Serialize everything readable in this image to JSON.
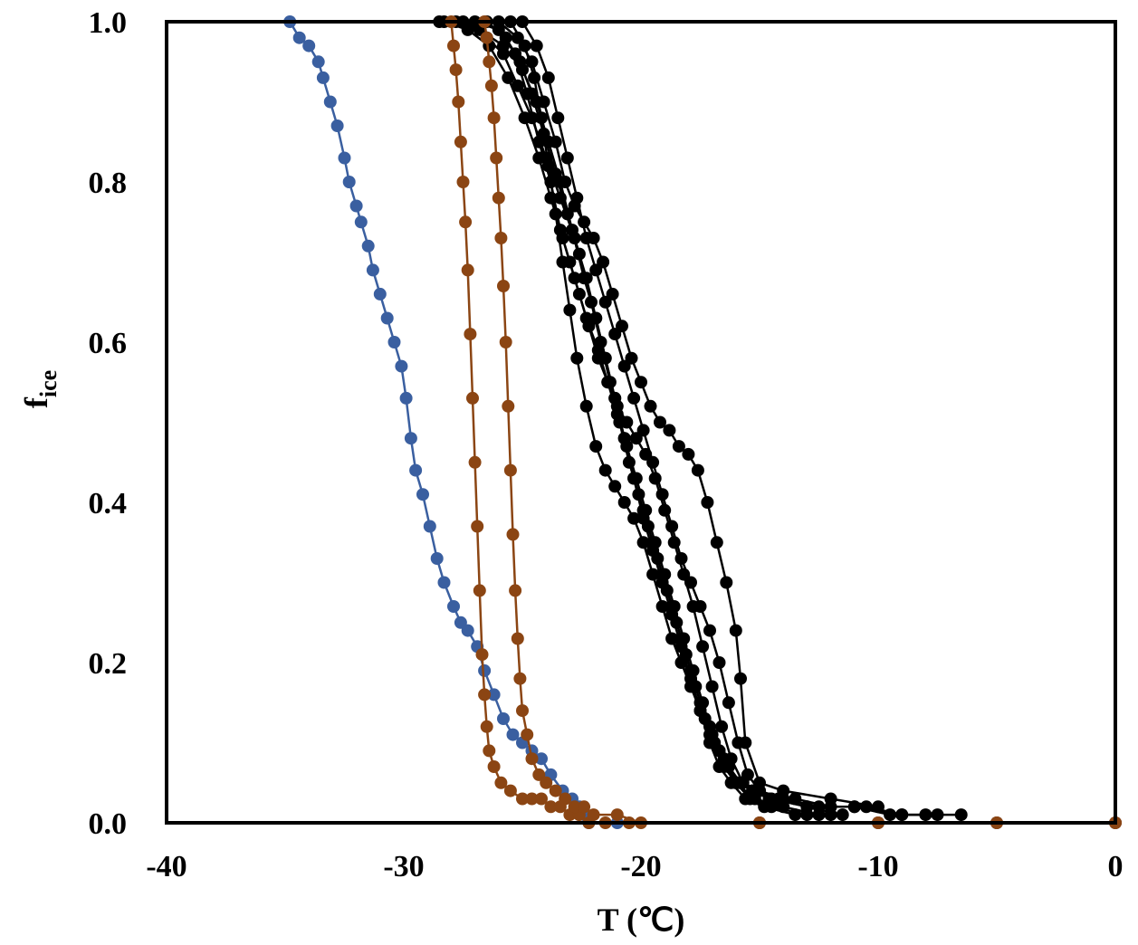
{
  "chart_data": {
    "type": "scatter",
    "title": "",
    "xlabel": "T (℃)",
    "ylabel_main": "f",
    "ylabel_sub": "ice",
    "xlim": [
      -40,
      0
    ],
    "ylim": [
      0,
      1
    ],
    "x_ticks": [
      -40,
      -30,
      -20,
      -10,
      0
    ],
    "x_tick_labels": [
      "-40",
      "-30",
      "-20",
      "-10",
      "0"
    ],
    "y_ticks": [
      0,
      0.2,
      0.4,
      0.6,
      0.8,
      1.0
    ],
    "y_tick_labels": [
      "0.0",
      "0.2",
      "0.4",
      "0.6",
      "0.8",
      "1.0"
    ],
    "grid": false,
    "legend": "none",
    "series": [
      {
        "color": "#3a5fa0",
        "x": [
          -34.8,
          -34.4,
          -34.0,
          -33.6,
          -33.4,
          -33.1,
          -32.8,
          -32.5,
          -32.3,
          -32.0,
          -31.8,
          -31.5,
          -31.3,
          -31.0,
          -30.7,
          -30.4,
          -30.1,
          -29.9,
          -29.7,
          -29.5,
          -29.2,
          -28.9,
          -28.6,
          -28.3,
          -27.9,
          -27.6,
          -27.3,
          -26.9,
          -26.6,
          -26.2,
          -25.8,
          -25.4,
          -25.0,
          -24.6,
          -24.2,
          -23.8,
          -23.3,
          -22.9,
          -22.6,
          -22.4,
          -22.2,
          -21.0,
          -15.0,
          -10.0,
          -5.0,
          0.0
        ],
        "y": [
          1.0,
          0.98,
          0.97,
          0.95,
          0.93,
          0.9,
          0.87,
          0.83,
          0.8,
          0.77,
          0.75,
          0.72,
          0.69,
          0.66,
          0.63,
          0.6,
          0.57,
          0.53,
          0.48,
          0.44,
          0.41,
          0.37,
          0.33,
          0.3,
          0.27,
          0.25,
          0.24,
          0.22,
          0.19,
          0.16,
          0.13,
          0.11,
          0.1,
          0.09,
          0.08,
          0.06,
          0.04,
          0.03,
          0.02,
          0.01,
          0.0,
          0.0,
          0.0,
          0.0,
          0.0,
          0.0
        ]
      },
      {
        "color": "#8b4513",
        "x": [
          -28.0,
          -27.9,
          -27.8,
          -27.7,
          -27.6,
          -27.5,
          -27.4,
          -27.3,
          -27.2,
          -27.1,
          -27.0,
          -26.9,
          -26.8,
          -26.7,
          -26.6,
          -26.5,
          -26.4,
          -26.2,
          -25.9,
          -25.5,
          -25.0,
          -24.6,
          -24.2,
          -23.8,
          -23.4,
          -23.0,
          -22.6,
          -22.2,
          -21.5,
          -20.5,
          -15.0,
          -10.0,
          -5.0,
          0.0
        ],
        "y": [
          1.0,
          0.97,
          0.94,
          0.9,
          0.85,
          0.8,
          0.75,
          0.69,
          0.61,
          0.53,
          0.45,
          0.37,
          0.29,
          0.21,
          0.16,
          0.12,
          0.09,
          0.07,
          0.05,
          0.04,
          0.03,
          0.03,
          0.03,
          0.02,
          0.02,
          0.01,
          0.01,
          0.0,
          0.0,
          0.0,
          0.0,
          0.0,
          0.0,
          0.0
        ]
      },
      {
        "color": "#8b4513",
        "x": [
          -26.6,
          -26.5,
          -26.4,
          -26.3,
          -26.2,
          -26.1,
          -26.0,
          -25.9,
          -25.8,
          -25.7,
          -25.6,
          -25.5,
          -25.4,
          -25.3,
          -25.2,
          -25.1,
          -25.0,
          -24.8,
          -24.6,
          -24.3,
          -24.0,
          -23.6,
          -23.2,
          -22.8,
          -22.4,
          -22.0,
          -21.0,
          -20.0,
          -15.0,
          -10.0,
          -5.0,
          0.0
        ],
        "y": [
          1.0,
          0.98,
          0.95,
          0.92,
          0.88,
          0.83,
          0.78,
          0.73,
          0.67,
          0.6,
          0.52,
          0.44,
          0.36,
          0.29,
          0.23,
          0.18,
          0.14,
          0.11,
          0.08,
          0.06,
          0.05,
          0.04,
          0.03,
          0.02,
          0.02,
          0.01,
          0.01,
          0.0,
          0.0,
          0.0,
          0.0,
          0.0
        ]
      },
      {
        "color": "#000000",
        "x": [
          -28.5,
          -27.5,
          -26.5,
          -25.8,
          -25.2,
          -24.6,
          -24.0,
          -23.4,
          -22.8,
          -22.3,
          -21.9,
          -21.5,
          -21.1,
          -20.7,
          -20.3,
          -19.9,
          -19.5,
          -19.1,
          -18.7,
          -18.3,
          -17.9,
          -17.5,
          -17.1,
          -16.7,
          -16.3,
          -15.8,
          -15.3,
          -14.6,
          -13.5,
          -12.0,
          -10.5,
          -9.0,
          -7.5,
          -6.5
        ],
        "y": [
          1.0,
          1.0,
          0.98,
          0.96,
          0.92,
          0.88,
          0.83,
          0.78,
          0.73,
          0.68,
          0.63,
          0.58,
          0.53,
          0.48,
          0.43,
          0.39,
          0.35,
          0.31,
          0.27,
          0.23,
          0.19,
          0.15,
          0.12,
          0.09,
          0.07,
          0.05,
          0.04,
          0.03,
          0.03,
          0.02,
          0.02,
          0.01,
          0.01,
          0.01
        ]
      },
      {
        "color": "#000000",
        "x": [
          -27.0,
          -26.0,
          -25.3,
          -24.8,
          -24.3,
          -23.8,
          -23.4,
          -23.0,
          -22.6,
          -22.2,
          -21.8,
          -21.4,
          -21.0,
          -20.6,
          -20.2,
          -19.8,
          -19.4,
          -19.0,
          -18.6,
          -18.2,
          -17.8,
          -17.4,
          -17.0,
          -16.6,
          -16.2,
          -15.7,
          -15.0,
          -14.0,
          -12.5,
          -11.0,
          -9.5,
          -8.0
        ],
        "y": [
          1.0,
          0.99,
          0.96,
          0.91,
          0.85,
          0.8,
          0.74,
          0.7,
          0.66,
          0.62,
          0.58,
          0.55,
          0.52,
          0.5,
          0.48,
          0.46,
          0.43,
          0.39,
          0.35,
          0.31,
          0.27,
          0.22,
          0.17,
          0.12,
          0.08,
          0.05,
          0.04,
          0.03,
          0.02,
          0.02,
          0.01,
          0.01
        ]
      },
      {
        "color": "#000000",
        "x": [
          -26.0,
          -25.2,
          -24.6,
          -24.1,
          -23.6,
          -23.2,
          -22.8,
          -22.4,
          -22.0,
          -21.6,
          -21.2,
          -20.8,
          -20.4,
          -20.0,
          -19.6,
          -19.2,
          -18.8,
          -18.4,
          -18.0,
          -17.6,
          -17.2,
          -16.8,
          -16.4,
          -16.0,
          -15.8,
          -15.6,
          -15.0,
          -14.0,
          -12.0,
          -10.0
        ],
        "y": [
          1.0,
          0.98,
          0.95,
          0.9,
          0.85,
          0.8,
          0.77,
          0.75,
          0.73,
          0.7,
          0.66,
          0.62,
          0.58,
          0.55,
          0.52,
          0.5,
          0.49,
          0.47,
          0.46,
          0.44,
          0.4,
          0.35,
          0.3,
          0.24,
          0.18,
          0.1,
          0.05,
          0.04,
          0.03,
          0.02
        ]
      },
      {
        "color": "#000000",
        "x": [
          -27.8,
          -26.8,
          -25.8,
          -25.0,
          -24.4,
          -23.9,
          -23.4,
          -22.9,
          -22.4,
          -21.9,
          -21.5,
          -21.1,
          -20.7,
          -20.3,
          -19.9,
          -19.5,
          -19.1,
          -18.7,
          -18.3,
          -17.9,
          -17.5,
          -17.1,
          -16.7,
          -16.2,
          -15.6,
          -14.8,
          -13.5,
          -12.0
        ],
        "y": [
          1.0,
          0.99,
          0.97,
          0.94,
          0.9,
          0.85,
          0.8,
          0.74,
          0.68,
          0.63,
          0.58,
          0.53,
          0.48,
          0.43,
          0.38,
          0.34,
          0.3,
          0.26,
          0.22,
          0.18,
          0.14,
          0.1,
          0.07,
          0.05,
          0.03,
          0.02,
          0.01,
          0.01
        ]
      },
      {
        "color": "#000000",
        "x": [
          -25.5,
          -24.9,
          -24.5,
          -24.2,
          -23.9,
          -23.6,
          -23.3,
          -23.0,
          -22.7,
          -22.3,
          -21.9,
          -21.5,
          -21.1,
          -20.7,
          -20.3,
          -19.9,
          -19.5,
          -19.1,
          -18.7,
          -18.3,
          -17.9,
          -17.5,
          -17.1,
          -16.7,
          -16.3,
          -15.9,
          -15.3,
          -14.5,
          -13.0,
          -11.5
        ],
        "y": [
          1.0,
          0.97,
          0.93,
          0.88,
          0.82,
          0.76,
          0.7,
          0.64,
          0.58,
          0.52,
          0.47,
          0.44,
          0.42,
          0.4,
          0.38,
          0.35,
          0.31,
          0.27,
          0.23,
          0.2,
          0.17,
          0.14,
          0.11,
          0.09,
          0.07,
          0.05,
          0.04,
          0.03,
          0.02,
          0.01
        ]
      },
      {
        "color": "#000000",
        "x": [
          -26.5,
          -25.7,
          -25.1,
          -24.6,
          -24.1,
          -23.6,
          -23.1,
          -22.6,
          -22.1,
          -21.7,
          -21.3,
          -20.9,
          -20.5,
          -20.1,
          -19.7,
          -19.3,
          -18.9,
          -18.5,
          -18.1,
          -17.7,
          -17.3,
          -16.9,
          -16.5,
          -16.0,
          -15.4,
          -14.5,
          -13.0
        ],
        "y": [
          1.0,
          0.98,
          0.95,
          0.91,
          0.86,
          0.81,
          0.76,
          0.71,
          0.65,
          0.6,
          0.55,
          0.5,
          0.45,
          0.41,
          0.37,
          0.33,
          0.29,
          0.25,
          0.21,
          0.17,
          0.13,
          0.1,
          0.07,
          0.05,
          0.03,
          0.02,
          0.01
        ]
      },
      {
        "color": "#000000",
        "x": [
          -25.0,
          -24.4,
          -23.9,
          -23.5,
          -23.1,
          -22.7,
          -22.3,
          -21.9,
          -21.5,
          -21.1,
          -20.7,
          -20.3,
          -19.9,
          -19.5,
          -19.1,
          -18.7,
          -18.3,
          -17.9,
          -17.5,
          -17.1,
          -16.7,
          -16.3,
          -15.9,
          -15.5,
          -15.0,
          -14.2,
          -13.0,
          -11.0,
          -9.0
        ],
        "y": [
          1.0,
          0.97,
          0.93,
          0.88,
          0.83,
          0.78,
          0.73,
          0.69,
          0.65,
          0.61,
          0.57,
          0.53,
          0.49,
          0.45,
          0.41,
          0.37,
          0.33,
          0.3,
          0.27,
          0.24,
          0.2,
          0.15,
          0.1,
          0.06,
          0.04,
          0.03,
          0.02,
          0.02,
          0.01
        ]
      },
      {
        "color": "#000000",
        "x": [
          -28.3,
          -27.3,
          -26.4,
          -25.6,
          -24.9,
          -24.3,
          -23.8,
          -23.3,
          -22.8,
          -22.3,
          -21.8,
          -21.4,
          -21.0,
          -20.6,
          -20.2,
          -19.8,
          -19.4,
          -19.0,
          -18.6,
          -18.2,
          -17.8,
          -17.4,
          -17.0,
          -16.5,
          -16.0,
          -15.2,
          -14.0,
          -12.5
        ],
        "y": [
          1.0,
          0.99,
          0.97,
          0.93,
          0.88,
          0.83,
          0.78,
          0.73,
          0.68,
          0.63,
          0.59,
          0.55,
          0.51,
          0.47,
          0.43,
          0.39,
          0.35,
          0.31,
          0.27,
          0.23,
          0.19,
          0.15,
          0.11,
          0.08,
          0.05,
          0.03,
          0.02,
          0.01
        ]
      }
    ]
  }
}
